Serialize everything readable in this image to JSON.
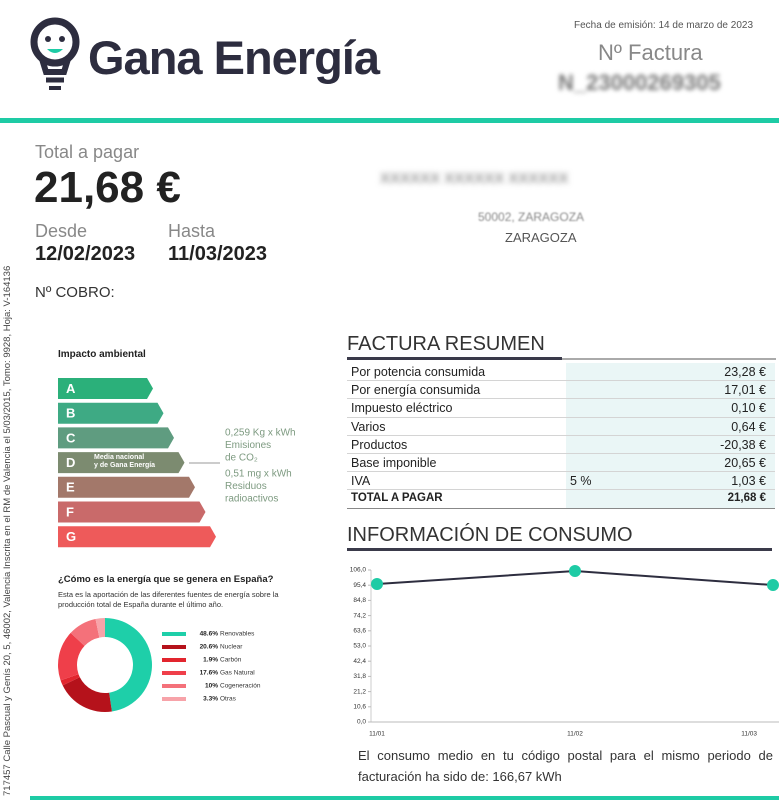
{
  "header": {
    "brand": "Gana Energía",
    "issue_date": "Fecha de emisión: 14 de marzo de 2023",
    "invoice_label": "Nº Factura",
    "invoice_number": "N_23000269305"
  },
  "payment": {
    "total_label": "Total a pagar",
    "total": "21,68 €",
    "from_label": "Desde",
    "from": "12/02/2023",
    "to_label": "Hasta",
    "to": "11/03/2023",
    "collection_label": "Nº COBRO:"
  },
  "address": {
    "name": "XXXXXX XXXXXX XXXXXX",
    "postal": "50002, ZARAGOZA",
    "province": "ZARAGOZA"
  },
  "side_text": "717457 Calle Pascual y Genís 20, 5, 46002, Valencia Inscrita en el RM de Valencia el 5/03/2015, Tomo: 9928, Hoja: V-164136",
  "environment": {
    "title": "Impacto ambiental",
    "classes": [
      "A",
      "B",
      "C",
      "D",
      "E",
      "F",
      "G"
    ],
    "average_label": [
      "Media nacional",
      "y de Gana Energía"
    ],
    "emissions": [
      "0,259 Kg x kWh",
      "Emisiones",
      "de CO₂"
    ],
    "waste": [
      "0,51 mg x kWh",
      "Residuos",
      "radioactivos"
    ]
  },
  "invoice_summary": {
    "title": "FACTURA RESUMEN",
    "rows": [
      {
        "label": "Por potencia consumida",
        "amount": "23,28 €"
      },
      {
        "label": "Por energía consumida",
        "amount": "17,01 €"
      },
      {
        "label": "Impuesto eléctrico",
        "amount": "0,10 €"
      },
      {
        "label": "Varios",
        "amount": "0,64 €"
      },
      {
        "label": "Productos",
        "amount": "-20,38 €"
      },
      {
        "label": "Base imponible",
        "amount": "20,65 €"
      },
      {
        "label": "IVA",
        "rate": "5 %",
        "amount": "1,03 €"
      },
      {
        "label": "TOTAL A PAGAR",
        "amount": "21,68 €"
      }
    ]
  },
  "chart_data": [
    {
      "type": "donut",
      "title": "¿Cómo es la energía que se genera en España?",
      "subtitle": "Esta es la aportación de las diferentes fuentes de energía sobre la producción total de España durante el último año.",
      "categories": [
        "Renovables",
        "Nuclear",
        "Carbón",
        "Gas Natural",
        "Cogeneración",
        "Otras"
      ],
      "values": [
        48.6,
        20.6,
        1.9,
        17.6,
        10,
        3.3
      ],
      "value_labels": [
        "48.6%",
        "20.6%",
        "1.9%",
        "17.6%",
        "10%",
        "3.3%"
      ],
      "colors": [
        "#1ecfa9",
        "#b5121b",
        "#e2252e",
        "#ef3f4a",
        "#f4717a",
        "#f7a3a9"
      ]
    },
    {
      "type": "line",
      "title": "INFORMACIÓN DE CONSUMO",
      "categories": [
        "11/01",
        "11/02",
        "11/03"
      ],
      "values": [
        96.2,
        105.3,
        95.5
      ],
      "color": "#2d2d3f",
      "marker_color": "#1ecba5",
      "ylim": [
        0,
        106
      ],
      "yticks": [
        {
          "value": 0,
          "label": "0,0"
        },
        {
          "value": 10.6,
          "label": "10,6"
        },
        {
          "value": 21.2,
          "label": "21,2"
        },
        {
          "value": 31.8,
          "label": "31,8"
        },
        {
          "value": 42.4,
          "label": "42,4"
        },
        {
          "value": 53,
          "label": "53,0"
        },
        {
          "value": 63.6,
          "label": "63,6"
        },
        {
          "value": 74.2,
          "label": "74,2"
        },
        {
          "value": 84.8,
          "label": "84,8"
        },
        {
          "value": 95.4,
          "label": "95,4"
        },
        {
          "value": 106,
          "label": "106,0"
        }
      ],
      "caption": "El consumo medio en tu código postal para el mismo periodo de facturación ha sido de: 166,67 kWh"
    }
  ]
}
